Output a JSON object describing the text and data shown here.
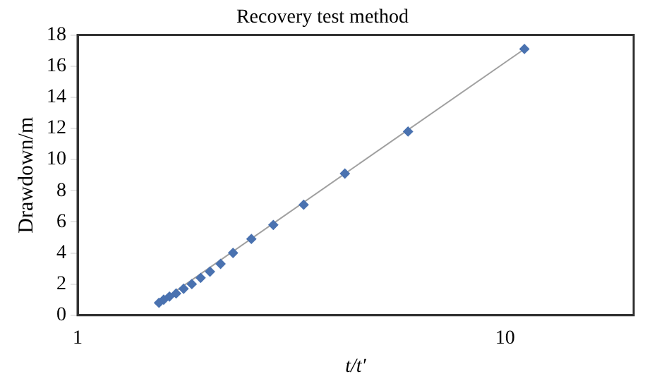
{
  "chart_data": {
    "type": "scatter",
    "title": "Recovery test method",
    "xlabel": "t/t′",
    "ylabel": "Drawdown/m",
    "log": "x",
    "xlim": [
      1,
      20
    ],
    "xticks": [
      1,
      10
    ],
    "ylim": [
      0,
      18
    ],
    "yticks": [
      0,
      2,
      4,
      6,
      8,
      10,
      12,
      14,
      16,
      18
    ],
    "grid": false,
    "legend": false,
    "series": [
      {
        "marker": "diamond",
        "color": "#4a72b0",
        "x": [
          1.55,
          1.59,
          1.64,
          1.7,
          1.77,
          1.85,
          1.94,
          2.04,
          2.16,
          2.31,
          2.55,
          2.87,
          3.38,
          4.22,
          5.93,
          11.1
        ],
        "values": [
          0.8,
          1.0,
          1.2,
          1.4,
          1.7,
          2.0,
          2.4,
          2.8,
          3.3,
          4.0,
          4.9,
          5.8,
          7.1,
          9.1,
          11.8,
          17.1
        ]
      },
      {
        "type": "line",
        "color": "#a0a0a0",
        "x": [
          1.55,
          11.1
        ],
        "values": [
          0.8,
          17.1
        ]
      }
    ]
  }
}
